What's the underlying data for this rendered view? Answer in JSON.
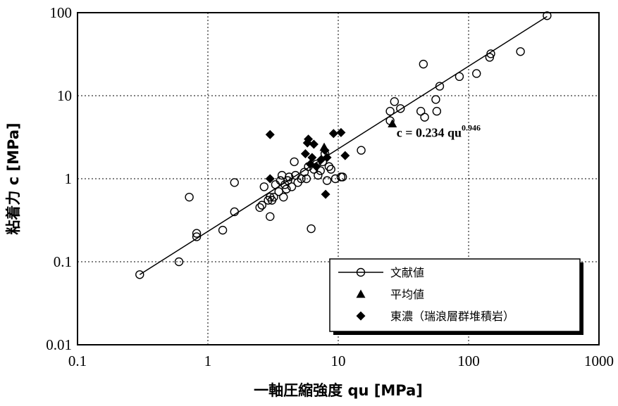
{
  "chart_data": {
    "type": "scatter",
    "xscale": "log",
    "yscale": "log",
    "xlim": [
      0.1,
      1000
    ],
    "ylim": [
      0.01,
      100
    ],
    "xlabel": "一軸圧縮強度 qu [MPa]",
    "ylabel": "粘着力 c [MPa]",
    "grid": true,
    "legend_position": "bottom-right",
    "x_ticks": [
      "0.1",
      "1",
      "10",
      "100",
      "1000"
    ],
    "y_ticks": [
      "0.01",
      "0.1",
      "1",
      "10",
      "100"
    ],
    "annotation": {
      "text": "c = 0.234 qu",
      "exponent": "0.946",
      "x": 28,
      "y": 3.2
    },
    "fit_line": {
      "x": [
        0.3,
        400
      ],
      "y": [
        0.07,
        90
      ]
    },
    "series": [
      {
        "name": "文献値",
        "marker": "open-circle",
        "points": [
          [
            0.3,
            0.07
          ],
          [
            0.6,
            0.1
          ],
          [
            0.72,
            0.6
          ],
          [
            0.82,
            0.2
          ],
          [
            0.82,
            0.22
          ],
          [
            1.3,
            0.24
          ],
          [
            1.6,
            0.4
          ],
          [
            1.6,
            0.9
          ],
          [
            2.5,
            0.45
          ],
          [
            2.6,
            0.48
          ],
          [
            2.7,
            0.8
          ],
          [
            2.9,
            0.55
          ],
          [
            3.0,
            0.35
          ],
          [
            3.0,
            0.6
          ],
          [
            3.1,
            0.55
          ],
          [
            3.2,
            0.6
          ],
          [
            3.3,
            0.85
          ],
          [
            3.5,
            0.7
          ],
          [
            3.6,
            0.95
          ],
          [
            3.7,
            1.1
          ],
          [
            3.8,
            0.6
          ],
          [
            3.9,
            0.85
          ],
          [
            4.0,
            0.75
          ],
          [
            4.1,
            0.95
          ],
          [
            4.2,
            1.05
          ],
          [
            4.4,
            0.8
          ],
          [
            4.6,
            1.6
          ],
          [
            4.7,
            1.1
          ],
          [
            4.9,
            0.9
          ],
          [
            5.2,
            1.0
          ],
          [
            5.5,
            1.2
          ],
          [
            5.7,
            1.0
          ],
          [
            5.9,
            1.4
          ],
          [
            6.2,
            0.25
          ],
          [
            6.5,
            1.3
          ],
          [
            6.8,
            1.5
          ],
          [
            7.0,
            1.1
          ],
          [
            7.3,
            1.25
          ],
          [
            7.6,
            1.6
          ],
          [
            7.9,
            2.0
          ],
          [
            8.2,
            0.95
          ],
          [
            8.5,
            1.4
          ],
          [
            8.8,
            1.3
          ],
          [
            9.5,
            1.0
          ],
          [
            10.5,
            1.05
          ],
          [
            10.8,
            1.05
          ],
          [
            15,
            2.2
          ],
          [
            25,
            6.5
          ],
          [
            25,
            5.0
          ],
          [
            27,
            8.5
          ],
          [
            30,
            7.0
          ],
          [
            43,
            6.5
          ],
          [
            45,
            24
          ],
          [
            46,
            5.5
          ],
          [
            56,
            9.0
          ],
          [
            57,
            6.5
          ],
          [
            60,
            13
          ],
          [
            85,
            17
          ],
          [
            115,
            18.5
          ],
          [
            145,
            29
          ],
          [
            148,
            32
          ],
          [
            250,
            34
          ],
          [
            400,
            92
          ]
        ]
      },
      {
        "name": "平均値",
        "marker": "filled-triangle",
        "points": [
          [
            7.8,
            2.4
          ],
          [
            26,
            4.6
          ]
        ]
      },
      {
        "name": "東濃（瑞浪層群堆積岩）",
        "marker": "filled-diamond",
        "points": [
          [
            3.0,
            3.4
          ],
          [
            3.0,
            1.0
          ],
          [
            5.6,
            2.0
          ],
          [
            5.8,
            2.7
          ],
          [
            5.9,
            3.0
          ],
          [
            6.1,
            1.5
          ],
          [
            6.3,
            1.8
          ],
          [
            6.5,
            2.6
          ],
          [
            6.8,
            1.4
          ],
          [
            7.4,
            1.7
          ],
          [
            7.9,
            2.2
          ],
          [
            8.0,
            0.65
          ],
          [
            8.2,
            1.8
          ],
          [
            9.2,
            3.5
          ],
          [
            10.5,
            3.6
          ],
          [
            11.3,
            1.9
          ]
        ]
      }
    ]
  }
}
